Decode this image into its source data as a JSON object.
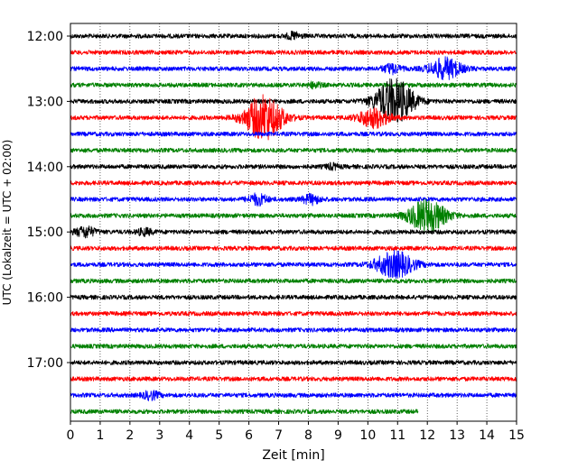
{
  "chart_data": {
    "type": "line",
    "title": "",
    "xlabel": "Zeit  [min]",
    "ylabel": "UTC (Lokalzeit = UTC + 02:00)",
    "xlim": [
      0,
      15
    ],
    "x_ticks": [
      0,
      1,
      2,
      3,
      4,
      5,
      6,
      7,
      8,
      9,
      10,
      11,
      12,
      13,
      14,
      15
    ],
    "x_tick_labels": [
      "0",
      "1",
      "2",
      "3",
      "4",
      "5",
      "6",
      "7",
      "8",
      "9",
      "10",
      "11",
      "12",
      "13",
      "14",
      "15"
    ],
    "y_tick_labels": [
      "12:00",
      "13:00",
      "14:00",
      "15:00",
      "16:00",
      "17:00"
    ],
    "grid": "vertical dotted at each minute",
    "trace_interval_minutes": 15,
    "color_cycle": [
      "#000000",
      "#ff0000",
      "#0000ff",
      "#008000"
    ],
    "traces": [
      {
        "start": "12:00",
        "color": "#000000",
        "events": [
          [
            7.5,
            0.5
          ]
        ]
      },
      {
        "start": "12:15",
        "color": "#ff0000",
        "events": []
      },
      {
        "start": "12:30",
        "color": "#0000ff",
        "events": [
          [
            10.8,
            0.7
          ],
          [
            12.6,
            1.6
          ]
        ]
      },
      {
        "start": "12:45",
        "color": "#008000",
        "events": [
          [
            8.2,
            0.4
          ]
        ]
      },
      {
        "start": "13:00",
        "color": "#000000",
        "events": [
          [
            10.9,
            3.5
          ]
        ]
      },
      {
        "start": "13:15",
        "color": "#ff0000",
        "events": [
          [
            6.5,
            3.5
          ],
          [
            10.2,
            1.5
          ]
        ]
      },
      {
        "start": "13:30",
        "color": "#0000ff",
        "events": []
      },
      {
        "start": "13:45",
        "color": "#008000",
        "events": []
      },
      {
        "start": "14:00",
        "color": "#000000",
        "events": [
          [
            8.8,
            0.4
          ]
        ]
      },
      {
        "start": "14:15",
        "color": "#ff0000",
        "events": []
      },
      {
        "start": "14:30",
        "color": "#0000ff",
        "events": [
          [
            6.3,
            0.8
          ],
          [
            8.1,
            0.7
          ]
        ]
      },
      {
        "start": "14:45",
        "color": "#008000",
        "events": [
          [
            12.0,
            2.5
          ]
        ]
      },
      {
        "start": "15:00",
        "color": "#000000",
        "events": [
          [
            0.5,
            0.8
          ],
          [
            2.5,
            0.5
          ]
        ]
      },
      {
        "start": "15:15",
        "color": "#ff0000",
        "events": []
      },
      {
        "start": "15:30",
        "color": "#0000ff",
        "events": [
          [
            10.9,
            2.0
          ]
        ]
      },
      {
        "start": "15:45",
        "color": "#008000",
        "events": []
      },
      {
        "start": "16:00",
        "color": "#000000",
        "events": []
      },
      {
        "start": "16:15",
        "color": "#ff0000",
        "events": []
      },
      {
        "start": "16:30",
        "color": "#0000ff",
        "events": []
      },
      {
        "start": "16:45",
        "color": "#008000",
        "events": []
      },
      {
        "start": "17:00",
        "color": "#000000",
        "events": []
      },
      {
        "start": "17:15",
        "color": "#ff0000",
        "events": []
      },
      {
        "start": "17:30",
        "color": "#0000ff",
        "events": [
          [
            2.7,
            0.6
          ]
        ]
      },
      {
        "start": "17:45",
        "color": "#008000",
        "end_minute": 11.7,
        "events": []
      }
    ]
  }
}
